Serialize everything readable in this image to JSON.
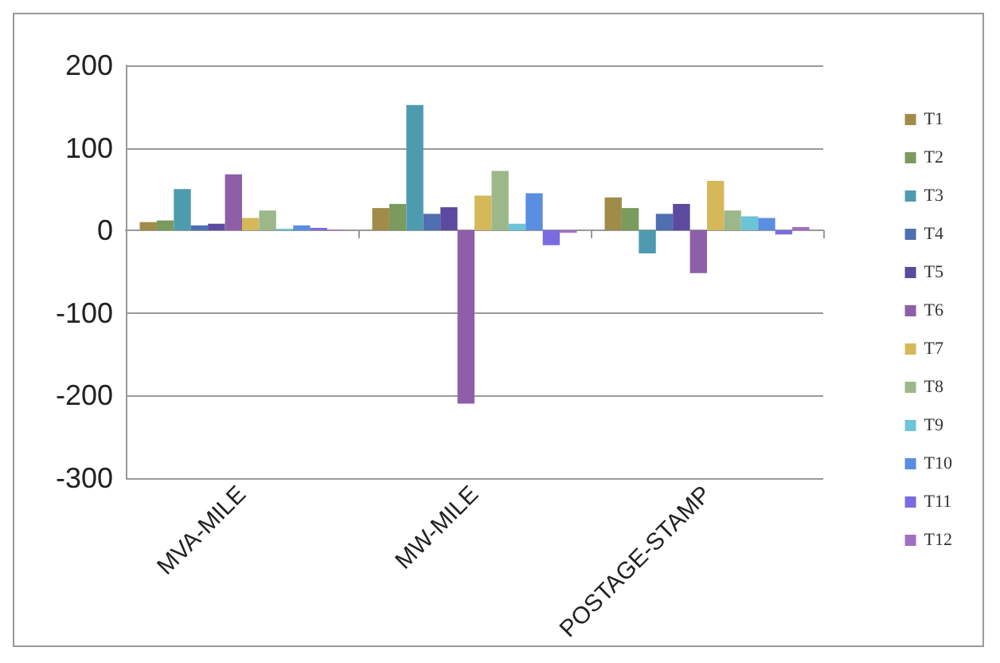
{
  "chart_data": {
    "type": "bar",
    "categories": [
      "MVA-MILE",
      "MW-MILE",
      "POSTAGE-STAMP"
    ],
    "series": [
      {
        "name": "T1",
        "color": "#a08c48",
        "values": [
          10,
          27,
          40
        ]
      },
      {
        "name": "T2",
        "color": "#7a9a5e",
        "values": [
          12,
          32,
          27
        ]
      },
      {
        "name": "T3",
        "color": "#4e9bb0",
        "values": [
          50,
          152,
          -28
        ]
      },
      {
        "name": "T4",
        "color": "#4f6fb0",
        "values": [
          6,
          20,
          20
        ]
      },
      {
        "name": "T5",
        "color": "#5b4a9f",
        "values": [
          8,
          28,
          32
        ]
      },
      {
        "name": "T6",
        "color": "#8e5fa8",
        "values": [
          68,
          -210,
          -52
        ]
      },
      {
        "name": "T7",
        "color": "#d4b85a",
        "values": [
          15,
          42,
          60
        ]
      },
      {
        "name": "T8",
        "color": "#9cb88a",
        "values": [
          24,
          72,
          24
        ]
      },
      {
        "name": "T9",
        "color": "#6cc4d8",
        "values": [
          2,
          8,
          17
        ]
      },
      {
        "name": "T10",
        "color": "#5a8ee0",
        "values": [
          6,
          45,
          15
        ]
      },
      {
        "name": "T11",
        "color": "#7a6ce0",
        "values": [
          3,
          -18,
          -5
        ]
      },
      {
        "name": "T12",
        "color": "#a070c0",
        "values": [
          1,
          -3,
          4
        ]
      }
    ],
    "ylim": [
      -300,
      200
    ],
    "yticks": [
      -300,
      -200,
      -100,
      0,
      100,
      200
    ],
    "grid": "y",
    "legend": "right"
  }
}
